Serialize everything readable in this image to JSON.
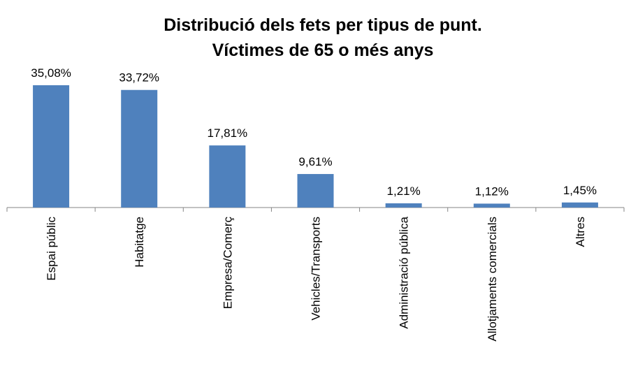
{
  "chart_data": {
    "type": "bar",
    "title": [
      "Distribució dels fets per tipus de punt.",
      "Víctimes de 65 o més anys"
    ],
    "categories": [
      "Espai públic",
      "Habitatge",
      "Empresa/Comerç",
      "Vehicles/Transports",
      "Administració pública",
      "Allotjaments comercials",
      "Altres"
    ],
    "values": [
      35.08,
      33.72,
      17.81,
      9.61,
      1.21,
      1.12,
      1.45
    ],
    "value_labels": [
      "35,08%",
      "33,72%",
      "17,81%",
      "9,61%",
      "1,21%",
      "1,12%",
      "1,45%"
    ],
    "color": "#4f81bd"
  }
}
